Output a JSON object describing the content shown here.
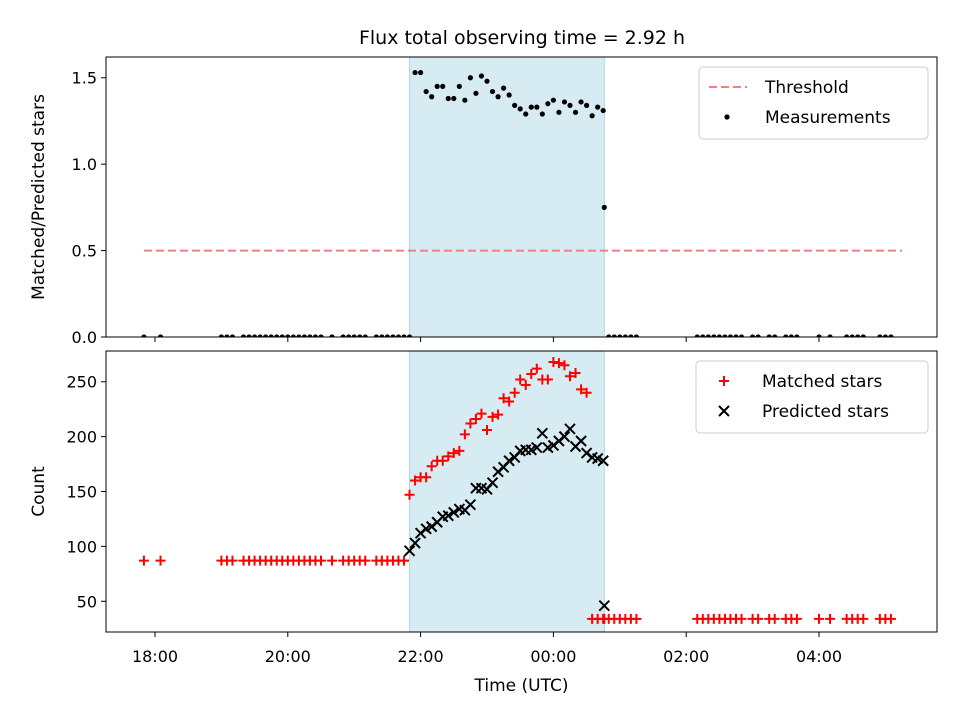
{
  "title": "Flux total observing time = 2.92 h",
  "chart_data": [
    {
      "type": "scatter",
      "ylabel": "Matched/Predicted stars",
      "ylim": [
        0,
        1.62
      ],
      "yticks": [
        0.0,
        0.5,
        1.0,
        1.5
      ],
      "ytick_labels": [
        "0.0",
        "0.5",
        "1.0",
        "1.5"
      ],
      "legend_position": "top-right",
      "shaded_region": {
        "from": "21:50",
        "to": "00:46",
        "color": "#add8e6"
      },
      "threshold": {
        "name": "Threshold",
        "value": 0.5,
        "x_from": "17:50",
        "x_to": "05:15",
        "color": "#f08080"
      },
      "series": [
        {
          "name": "Measurements",
          "color": "#000000",
          "x": [
            "17:50",
            "18:05",
            "19:00",
            "19:05",
            "19:10",
            "19:20",
            "19:25",
            "19:30",
            "19:35",
            "19:40",
            "19:45",
            "19:50",
            "19:55",
            "20:00",
            "20:05",
            "20:10",
            "20:15",
            "20:20",
            "20:25",
            "20:30",
            "20:40",
            "20:50",
            "20:55",
            "21:00",
            "21:05",
            "21:10",
            "21:20",
            "21:25",
            "21:30",
            "21:35",
            "21:40",
            "21:45",
            "21:50",
            "21:55",
            "22:00",
            "22:05",
            "22:10",
            "22:15",
            "22:20",
            "22:25",
            "22:30",
            "22:35",
            "22:40",
            "22:45",
            "22:50",
            "22:55",
            "23:00",
            "23:05",
            "23:10",
            "23:15",
            "23:20",
            "23:25",
            "23:30",
            "23:35",
            "23:40",
            "23:45",
            "23:50",
            "23:55",
            "00:00",
            "00:05",
            "00:10",
            "00:15",
            "00:20",
            "00:25",
            "00:30",
            "00:35",
            "00:40",
            "00:45",
            "00:46",
            "00:50",
            "00:55",
            "01:00",
            "01:05",
            "01:10",
            "01:15",
            "02:10",
            "02:15",
            "02:20",
            "02:25",
            "02:30",
            "02:35",
            "02:40",
            "02:45",
            "02:50",
            "03:00",
            "03:05",
            "03:15",
            "03:20",
            "03:30",
            "03:35",
            "03:40",
            "04:00",
            "04:10",
            "04:25",
            "04:30",
            "04:35",
            "04:40",
            "04:55",
            "05:00",
            "05:05"
          ],
          "y": [
            0,
            0,
            0,
            0,
            0,
            0,
            0,
            0,
            0,
            0,
            0,
            0,
            0,
            0,
            0,
            0,
            0,
            0,
            0,
            0,
            0,
            0,
            0,
            0,
            0,
            0,
            0,
            0,
            0,
            0,
            0,
            0,
            0,
            1.53,
            1.53,
            1.42,
            1.39,
            1.45,
            1.45,
            1.38,
            1.38,
            1.45,
            1.37,
            1.5,
            1.41,
            1.51,
            1.48,
            1.42,
            1.39,
            1.44,
            1.4,
            1.34,
            1.32,
            1.29,
            1.33,
            1.33,
            1.29,
            1.35,
            1.37,
            1.3,
            1.36,
            1.34,
            1.3,
            1.36,
            1.34,
            1.28,
            1.33,
            1.31,
            0.75,
            0,
            0,
            0,
            0,
            0,
            0,
            0,
            0,
            0,
            0,
            0,
            0,
            0,
            0,
            0,
            0,
            0,
            0,
            0,
            0,
            0,
            0,
            0,
            0,
            0,
            0,
            0,
            0,
            0,
            0,
            0
          ]
        }
      ]
    },
    {
      "type": "scatter",
      "xlabel": "Time (UTC)",
      "ylabel": "Count",
      "ylim": [
        22,
        278
      ],
      "yticks": [
        50,
        100,
        150,
        200,
        250
      ],
      "ytick_labels": [
        "50",
        "100",
        "150",
        "200",
        "250"
      ],
      "xticks": [
        "18:00",
        "20:00",
        "22:00",
        "00:00",
        "02:00",
        "04:00"
      ],
      "legend_position": "top-right",
      "shaded_region": {
        "from": "21:50",
        "to": "00:46",
        "color": "#add8e6"
      },
      "series": [
        {
          "name": "Matched stars",
          "color": "#ff0000",
          "marker": "plus",
          "x": [
            "17:50",
            "18:05",
            "19:00",
            "19:05",
            "19:10",
            "19:20",
            "19:25",
            "19:30",
            "19:35",
            "19:40",
            "19:45",
            "19:50",
            "19:55",
            "20:00",
            "20:05",
            "20:10",
            "20:15",
            "20:20",
            "20:25",
            "20:30",
            "20:40",
            "20:50",
            "20:55",
            "21:00",
            "21:05",
            "21:10",
            "21:20",
            "21:25",
            "21:30",
            "21:35",
            "21:40",
            "21:45",
            "21:50",
            "21:55",
            "22:00",
            "22:05",
            "22:10",
            "22:15",
            "22:20",
            "22:25",
            "22:30",
            "22:35",
            "22:40",
            "22:45",
            "22:50",
            "22:55",
            "23:00",
            "23:05",
            "23:10",
            "23:15",
            "23:20",
            "23:25",
            "23:30",
            "23:35",
            "23:40",
            "23:45",
            "23:50",
            "23:55",
            "00:00",
            "00:05",
            "00:10",
            "00:15",
            "00:20",
            "00:25",
            "00:30",
            "00:35",
            "00:40",
            "00:45",
            "00:46",
            "00:50",
            "00:55",
            "01:00",
            "01:05",
            "01:10",
            "01:15",
            "02:10",
            "02:15",
            "02:20",
            "02:25",
            "02:30",
            "02:35",
            "02:40",
            "02:45",
            "02:50",
            "03:00",
            "03:05",
            "03:15",
            "03:20",
            "03:30",
            "03:35",
            "03:40",
            "04:00",
            "04:10",
            "04:25",
            "04:30",
            "04:35",
            "04:40",
            "04:55",
            "05:00",
            "05:05"
          ],
          "y": [
            87,
            87,
            87,
            87,
            87,
            87,
            87,
            87,
            87,
            87,
            87,
            87,
            87,
            87,
            87,
            87,
            87,
            87,
            87,
            87,
            87,
            87,
            87,
            87,
            87,
            87,
            87,
            87,
            87,
            87,
            87,
            87,
            147,
            160,
            163,
            163,
            173,
            178,
            178,
            182,
            185,
            187,
            202,
            212,
            216,
            221,
            206,
            218,
            220,
            235,
            232,
            240,
            252,
            247,
            257,
            262,
            252,
            252,
            268,
            267,
            265,
            255,
            258,
            243,
            240,
            34,
            34,
            34,
            34,
            34,
            34,
            34,
            34,
            34,
            34,
            34,
            34,
            34,
            34,
            34,
            34,
            34,
            34,
            34,
            34,
            34,
            34,
            34,
            34,
            34,
            34,
            34,
            34,
            34,
            34,
            34,
            34,
            34,
            34,
            34
          ]
        },
        {
          "name": "Predicted stars",
          "color": "#000000",
          "marker": "x",
          "x": [
            "21:50",
            "21:55",
            "22:00",
            "22:05",
            "22:10",
            "22:15",
            "22:20",
            "22:25",
            "22:30",
            "22:35",
            "22:40",
            "22:45",
            "22:50",
            "22:55",
            "23:00",
            "23:05",
            "23:10",
            "23:15",
            "23:20",
            "23:25",
            "23:30",
            "23:35",
            "23:40",
            "23:45",
            "23:50",
            "23:55",
            "00:00",
            "00:05",
            "00:10",
            "00:15",
            "00:20",
            "00:25",
            "00:30",
            "00:35",
            "00:40",
            "00:45",
            "00:46"
          ],
          "y": [
            96,
            103,
            112,
            116,
            118,
            122,
            127,
            128,
            131,
            134,
            133,
            138,
            153,
            153,
            152,
            158,
            168,
            172,
            178,
            181,
            187,
            188,
            188,
            190,
            203,
            190,
            192,
            196,
            200,
            207,
            191,
            196,
            185,
            181,
            180,
            178,
            46
          ]
        }
      ]
    }
  ]
}
